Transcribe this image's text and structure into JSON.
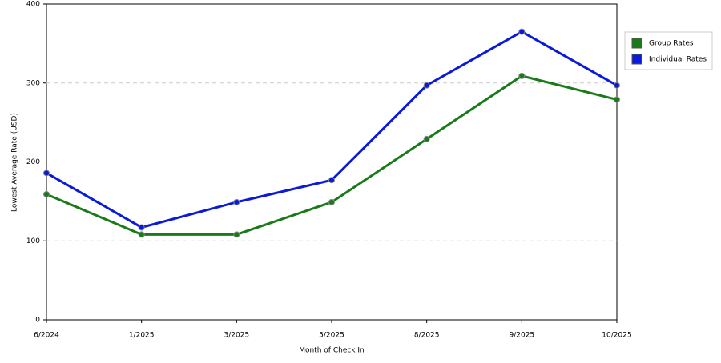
{
  "chart_data": {
    "type": "line",
    "x_label": "Month of Check In",
    "y_label": "Lowest Average Rate (USD)",
    "categories": [
      "6/2024",
      "1/2025",
      "3/2025",
      "5/2025",
      "8/2025",
      "9/2025",
      "10/2025"
    ],
    "series": [
      {
        "name": "Group Rates",
        "color": "#1a7a1a",
        "values": [
          159,
          108,
          108,
          149,
          229,
          309,
          279
        ]
      },
      {
        "name": "Individual Rates",
        "color": "#0a1ad8",
        "values": [
          186,
          117,
          149,
          177,
          297,
          365,
          297
        ]
      }
    ],
    "ylim": [
      0,
      400
    ],
    "yticks": [
      0,
      100,
      200,
      300,
      400
    ],
    "grid": true,
    "legend": "right"
  }
}
